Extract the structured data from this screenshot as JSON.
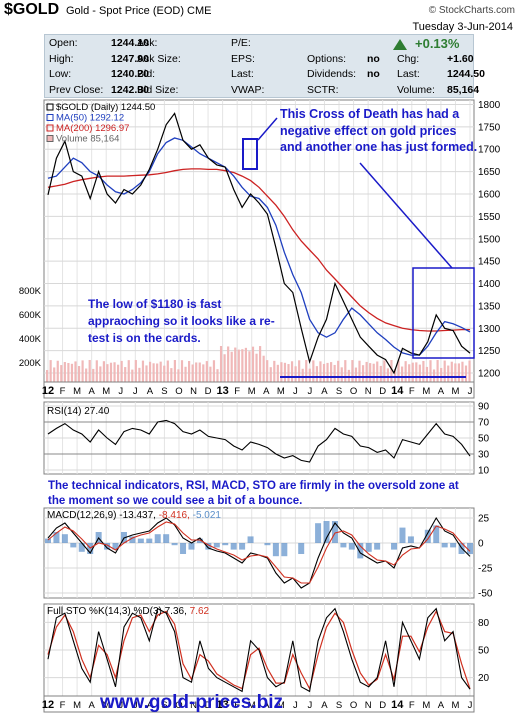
{
  "header": {
    "symbol": "$GOLD",
    "name": "Gold - Spot Price (EOD)",
    "exchange": "CME",
    "logo": "© StockCharts.com",
    "date": "Tuesday   3-Jun-2014"
  },
  "quote": {
    "rows": [
      [
        {
          "label": "Open:",
          "value": "1244.10"
        },
        {
          "label": "Ask:",
          "value": ""
        },
        {
          "label": "P/E:",
          "value": ""
        },
        {
          "label": "",
          "value": ""
        },
        {
          "label": "",
          "value": ""
        }
      ],
      [
        {
          "label": "High:",
          "value": "1247.90"
        },
        {
          "label": "Ask Size:",
          "value": ""
        },
        {
          "label": "EPS:",
          "value": ""
        },
        {
          "label": "Options:",
          "value": "no"
        },
        {
          "label": "Chg:",
          "value": "+1.60"
        }
      ],
      [
        {
          "label": "Low:",
          "value": "1240.20"
        },
        {
          "label": "Bid:",
          "value": ""
        },
        {
          "label": "Last:",
          "value": ""
        },
        {
          "label": "Dividends:",
          "value": "no"
        },
        {
          "label": "Last:",
          "value": "1244.50"
        }
      ],
      [
        {
          "label": "Prev Close:",
          "value": "1242.90"
        },
        {
          "label": "Bid Size:",
          "value": ""
        },
        {
          "label": "VWAP:",
          "value": ""
        },
        {
          "label": "SCTR:",
          "value": ""
        },
        {
          "label": "Volume:",
          "value": "85,164"
        }
      ]
    ],
    "change_pct": "+0.13%",
    "up_color": "#2e7d32"
  },
  "annotations": {
    "cross_of_death": "This Cross of Death has had a negative effect on gold prices and another one has just formed.",
    "low_retest": "The low of $1180 is fast appraoching so it looks like a re-test is on the cards.",
    "indicators": "The technical indicators, RSI, MACD, STO are firmly in the oversold zone at the moment so we could see a bit of a bounce."
  },
  "footer": {
    "url": "www.gold-prices.biz"
  },
  "chart_data": [
    {
      "type": "line",
      "title": "$GOLD (Daily) 1244.50",
      "legend": [
        "$GOLD (Daily) 1244.50",
        "MA(50) 1292.12",
        "MA(200) 1296.97",
        "Volume 85,164"
      ],
      "legend_placement": "top-left",
      "x_ticks": [
        "12",
        "F",
        "M",
        "A",
        "M",
        "J",
        "J",
        "A",
        "S",
        "O",
        "N",
        "D",
        "13",
        "F",
        "M",
        "A",
        "M",
        "J",
        "J",
        "A",
        "S",
        "O",
        "N",
        "D",
        "14",
        "F",
        "M",
        "A",
        "M",
        "J"
      ],
      "y_ticks": [
        1200,
        1250,
        1300,
        1350,
        1400,
        1450,
        1500,
        1550,
        1600,
        1650,
        1700,
        1750,
        1800
      ],
      "ylim": [
        1180,
        1810
      ],
      "volume_ticks": [
        "800K",
        "600K",
        "400K",
        "200K"
      ],
      "colors": {
        "price": "#000000",
        "ma50": "#1f3fbf",
        "ma200": "#cc2222",
        "volume": "#f0b8b8",
        "annotation": "#1a1ac8"
      },
      "series": [
        {
          "name": "$GOLD",
          "values": [
            1598,
            1680,
            1718,
            1650,
            1640,
            1590,
            1650,
            1600,
            1580,
            1610,
            1600,
            1620,
            1655,
            1700,
            1755,
            1780,
            1720,
            1700,
            1710,
            1680,
            1665,
            1660,
            1610,
            1570,
            1600,
            1580,
            1555,
            1480,
            1400,
            1380,
            1300,
            1225,
            1280,
            1320,
            1400,
            1360,
            1320,
            1280,
            1260,
            1240,
            1230,
            1200,
            1255,
            1245,
            1240,
            1270,
            1330,
            1300,
            1295,
            1260,
            1244.5
          ]
        },
        {
          "name": "MA(50) 1292.12",
          "values": [
            1635,
            1640,
            1660,
            1680,
            1670,
            1650,
            1640,
            1620,
            1605,
            1600,
            1610,
            1625,
            1650,
            1690,
            1715,
            1725,
            1720,
            1705,
            1690,
            1680,
            1670,
            1660,
            1640,
            1615,
            1595,
            1590,
            1570,
            1530,
            1470,
            1420,
            1380,
            1320,
            1290,
            1280,
            1290,
            1320,
            1345,
            1330,
            1310,
            1290,
            1275,
            1258,
            1245,
            1240,
            1240,
            1260,
            1290,
            1315,
            1310,
            1302,
            1292
          ]
        },
        {
          "name": "MA(200) 1296.97",
          "values": [
            1615,
            1618,
            1622,
            1628,
            1632,
            1635,
            1638,
            1640,
            1640,
            1640,
            1641,
            1642,
            1643,
            1645,
            1648,
            1652,
            1655,
            1656,
            1656,
            1655,
            1655,
            1652,
            1648,
            1640,
            1630,
            1615,
            1595,
            1575,
            1550,
            1520,
            1495,
            1475,
            1455,
            1430,
            1410,
            1390,
            1370,
            1350,
            1335,
            1322,
            1312,
            1306,
            1300,
            1297,
            1295,
            1294,
            1294,
            1295,
            1296,
            1297,
            1296.97
          ]
        }
      ]
    },
    {
      "type": "line",
      "title": "RSI(14) 27.40",
      "y_ticks": [
        10,
        30,
        50,
        70,
        90
      ],
      "ylim": [
        5,
        95
      ],
      "reference_lines": [
        30,
        70
      ],
      "series": [
        {
          "name": "RSI(14) 27.40",
          "values": [
            55,
            62,
            68,
            60,
            55,
            45,
            60,
            50,
            42,
            58,
            62,
            60,
            55,
            70,
            72,
            68,
            58,
            55,
            60,
            52,
            50,
            48,
            40,
            35,
            45,
            42,
            38,
            30,
            25,
            28,
            22,
            20,
            40,
            48,
            62,
            55,
            52,
            40,
            38,
            32,
            35,
            25,
            48,
            45,
            42,
            55,
            68,
            55,
            52,
            42,
            27.4
          ]
        }
      ]
    },
    {
      "type": "line",
      "title": "MACD(12,26,9) -13.437, -8.416, -5.021",
      "y_ticks": [
        25,
        0,
        -25,
        -50
      ],
      "ylim": [
        -55,
        35
      ],
      "series": [
        {
          "name": "MACD(12,26,9) -13.437",
          "values": [
            5,
            15,
            20,
            10,
            0,
            -10,
            5,
            -5,
            -10,
            5,
            8,
            10,
            12,
            20,
            25,
            18,
            5,
            0,
            5,
            -5,
            -8,
            -10,
            -15,
            -20,
            -10,
            -12,
            -15,
            -30,
            -40,
            -35,
            -45,
            -40,
            -15,
            5,
            20,
            10,
            5,
            -10,
            -15,
            -20,
            -18,
            -25,
            -5,
            -3,
            -5,
            10,
            25,
            12,
            8,
            -5,
            -13.437
          ]
        },
        {
          "name": "-8.416",
          "values": [
            3,
            10,
            16,
            12,
            4,
            -5,
            0,
            -2,
            -7,
            0,
            5,
            8,
            10,
            16,
            21,
            19,
            10,
            3,
            3,
            -2,
            -6,
            -9,
            -12,
            -17,
            -13,
            -12,
            -14,
            -24,
            -34,
            -35,
            -40,
            -40,
            -24,
            -5,
            10,
            12,
            8,
            -3,
            -11,
            -17,
            -18,
            -22,
            -12,
            -6,
            -5,
            4,
            17,
            14,
            10,
            0,
            -8.416
          ]
        }
      ]
    },
    {
      "type": "line",
      "title": "Full STO %K(14,3) %D(3) 7.36, 7.62",
      "y_ticks": [
        20,
        50,
        80
      ],
      "ylim": [
        0,
        100
      ],
      "x_ticks": [
        "12",
        "F",
        "M",
        "A",
        "M",
        "J",
        "J",
        "A",
        "S",
        "O",
        "N",
        "D",
        "13",
        "F",
        "M",
        "A",
        "M",
        "J",
        "J",
        "A",
        "S",
        "O",
        "N",
        "D",
        "14",
        "F",
        "M",
        "A",
        "M",
        "J"
      ],
      "series": [
        {
          "name": "%K(14,3) 7.36",
          "values": [
            40,
            85,
            90,
            60,
            30,
            15,
            70,
            40,
            10,
            75,
            90,
            85,
            60,
            95,
            90,
            70,
            20,
            15,
            60,
            30,
            20,
            15,
            10,
            5,
            60,
            50,
            20,
            10,
            15,
            60,
            10,
            5,
            60,
            85,
            95,
            70,
            40,
            15,
            10,
            20,
            60,
            10,
            80,
            60,
            40,
            85,
            95,
            60,
            70,
            20,
            7.36
          ]
        },
        {
          "name": "%D(3) 7.62",
          "values": [
            45,
            75,
            88,
            70,
            40,
            20,
            55,
            45,
            20,
            60,
            85,
            88,
            70,
            88,
            92,
            78,
            35,
            18,
            45,
            38,
            24,
            18,
            12,
            8,
            45,
            52,
            30,
            14,
            14,
            45,
            25,
            8,
            45,
            75,
            90,
            80,
            50,
            25,
            12,
            18,
            45,
            18,
            65,
            65,
            48,
            75,
            92,
            70,
            68,
            35,
            7.62
          ]
        }
      ]
    }
  ]
}
